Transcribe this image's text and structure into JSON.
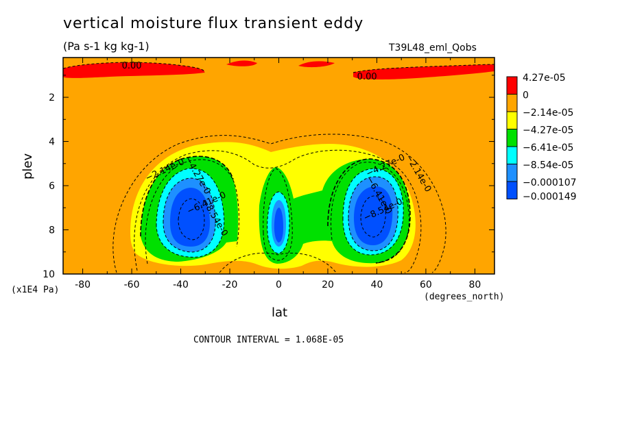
{
  "chart_data": {
    "type": "contour",
    "title": "vertical moisture flux transient eddy",
    "units": "(Pa s-1 kg kg-1)",
    "tag": "T39L48_eml_Qobs",
    "xlabel": "lat",
    "ylabel": "plev",
    "x_unit": "(degrees_north)",
    "y_unit": "(x1E4 Pa)",
    "xlim": [
      -88,
      88
    ],
    "ylim": [
      10,
      0.2
    ],
    "x_ticks": [
      -80,
      -60,
      -40,
      -20,
      0,
      20,
      40,
      60,
      80
    ],
    "y_ticks": [
      2,
      4,
      6,
      8,
      10
    ],
    "contour_interval": "CONTOUR INTERVAL = 1.068E-05",
    "legend": {
      "labels": [
        "4.27e-05",
        "0",
        "−2.14e-05",
        "−4.27e-05",
        "−6.41e-05",
        "−8.54e-05",
        "−0.000107",
        "−0.000149"
      ],
      "colors": [
        "#ff0000",
        "#ffa500",
        "#ffff00",
        "#00e000",
        "#00ffff",
        "#1e90ff",
        "#0050ff"
      ]
    },
    "contour_labels": [
      {
        "text": "0.00",
        "x": -60,
        "y": 0.7
      },
      {
        "text": "0.00",
        "x": 36,
        "y": 1.2
      },
      {
        "text": "−2.14e-0",
        "x": -46,
        "y": 5.4
      },
      {
        "text": "−4.27e-0",
        "x": -34,
        "y": 5.6
      },
      {
        "text": "−6.41e-0",
        "x": -29,
        "y": 6.9
      },
      {
        "text": "−8.54e-0",
        "x": -27,
        "y": 7.5
      },
      {
        "text": "−4.27e-0",
        "x": 44,
        "y": 5.2
      },
      {
        "text": "−6.41e-0",
        "x": 40,
        "y": 6.5
      },
      {
        "text": "−8.54e-0",
        "x": 43,
        "y": 7.2
      },
      {
        "text": "−2.14e-0",
        "x": 56,
        "y": 5.5
      }
    ],
    "colorbar_labels_shown": true
  }
}
